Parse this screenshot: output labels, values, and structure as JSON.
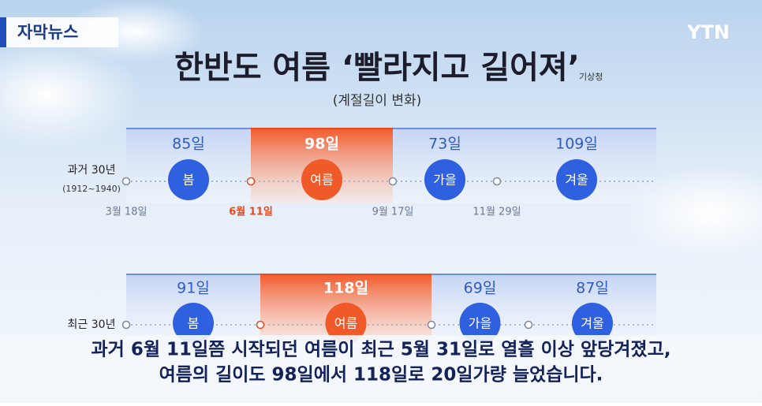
{
  "badge": "자막뉴스",
  "logo": "YTN",
  "title": "한반도 여름 ‘빨라지고 길어져’",
  "source": "기상청",
  "subtitle": "(계절길이 변화)",
  "rows": [
    {
      "label": "과거 30년",
      "period": "(1912~1940)",
      "seasons": [
        {
          "name": "봄",
          "days": "85일"
        },
        {
          "name": "여름",
          "days": "98일"
        },
        {
          "name": "가을",
          "days": "73일"
        },
        {
          "name": "겨울",
          "days": "109일"
        }
      ],
      "dates": [
        "3월 18일",
        "6월 11일",
        "9월 17일",
        "11월 29일"
      ]
    },
    {
      "label": "최근 30년",
      "seasons": [
        {
          "name": "봄",
          "days": "91일"
        },
        {
          "name": "여름",
          "days": "118일"
        },
        {
          "name": "가을",
          "days": "69일"
        },
        {
          "name": "겨울",
          "days": "87일"
        }
      ]
    }
  ],
  "caption": [
    "과거 6월 11일쯤 시작되던 여름이 최근 5월 31일로 열흘 이상 앞당겨졌고,",
    "여름의 길이도 98일에서 118일로 20일가량 늘었습니다."
  ]
}
